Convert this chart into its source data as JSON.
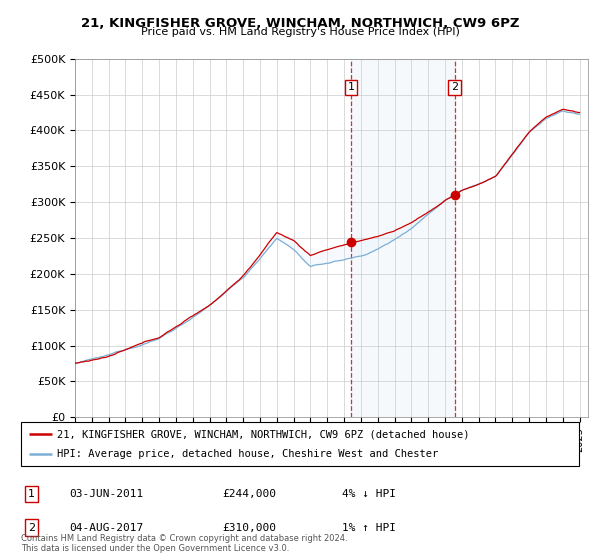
{
  "title": "21, KINGFISHER GROVE, WINCHAM, NORTHWICH, CW9 6PZ",
  "subtitle": "Price paid vs. HM Land Registry's House Price Index (HPI)",
  "ylabel_ticks": [
    "£0",
    "£50K",
    "£100K",
    "£150K",
    "£200K",
    "£250K",
    "£300K",
    "£350K",
    "£400K",
    "£450K",
    "£500K"
  ],
  "ytick_values": [
    0,
    50000,
    100000,
    150000,
    200000,
    250000,
    300000,
    350000,
    400000,
    450000,
    500000
  ],
  "ylim": [
    0,
    500000
  ],
  "xlim_start": 1995.0,
  "xlim_end": 2025.5,
  "red_line_color": "#cc0000",
  "blue_line_color": "#7bafd4",
  "fill_color": "#ddeeff",
  "marker1_x": 2011.42,
  "marker1_y": 244000,
  "marker1_label": "1",
  "marker2_x": 2017.58,
  "marker2_y": 310000,
  "marker2_label": "2",
  "vline_color": "#cc0000",
  "legend_line1": "21, KINGFISHER GROVE, WINCHAM, NORTHWICH, CW9 6PZ (detached house)",
  "legend_line2": "HPI: Average price, detached house, Cheshire West and Chester",
  "table_rows": [
    {
      "num": "1",
      "date": "03-JUN-2011",
      "price": "£244,000",
      "change": "4% ↓ HPI"
    },
    {
      "num": "2",
      "date": "04-AUG-2017",
      "price": "£310,000",
      "change": "1% ↑ HPI"
    }
  ],
  "footer": "Contains HM Land Registry data © Crown copyright and database right 2024.\nThis data is licensed under the Open Government Licence v3.0.",
  "background_color": "#ffffff",
  "plot_bg_color": "#ffffff",
  "grid_color": "#cccccc"
}
